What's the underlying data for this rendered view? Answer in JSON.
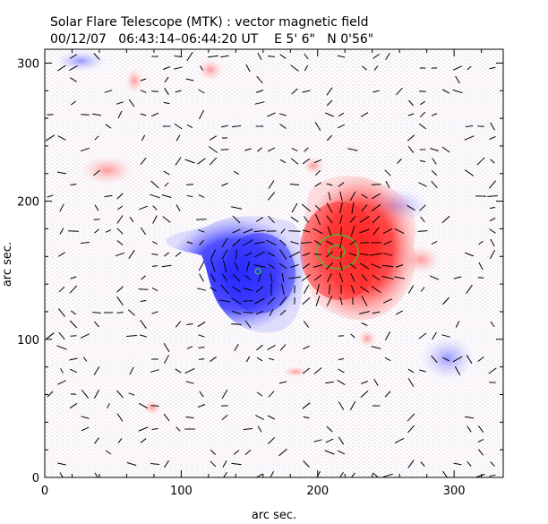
{
  "header": {
    "title": "Solar Flare Telescope (MTK) : vector magnetic field",
    "date": "00/12/07",
    "time_range": "06:43:14–06:44:20 UT",
    "position_east": "E 5' 6\"",
    "position_north": "N 0'56\""
  },
  "axes": {
    "xlabel": "arc sec.",
    "ylabel": "arc sec.",
    "xticks": [
      0,
      100,
      200,
      300
    ],
    "yticks": [
      0,
      100,
      200,
      300
    ],
    "xlim": [
      0,
      336
    ],
    "ylim": [
      0,
      310
    ]
  },
  "colors": {
    "positive_polarity": "#ff3030",
    "negative_polarity": "#3a3aff",
    "contour": "#33cc33",
    "vector": "#000000",
    "background": "#ffffff"
  }
}
